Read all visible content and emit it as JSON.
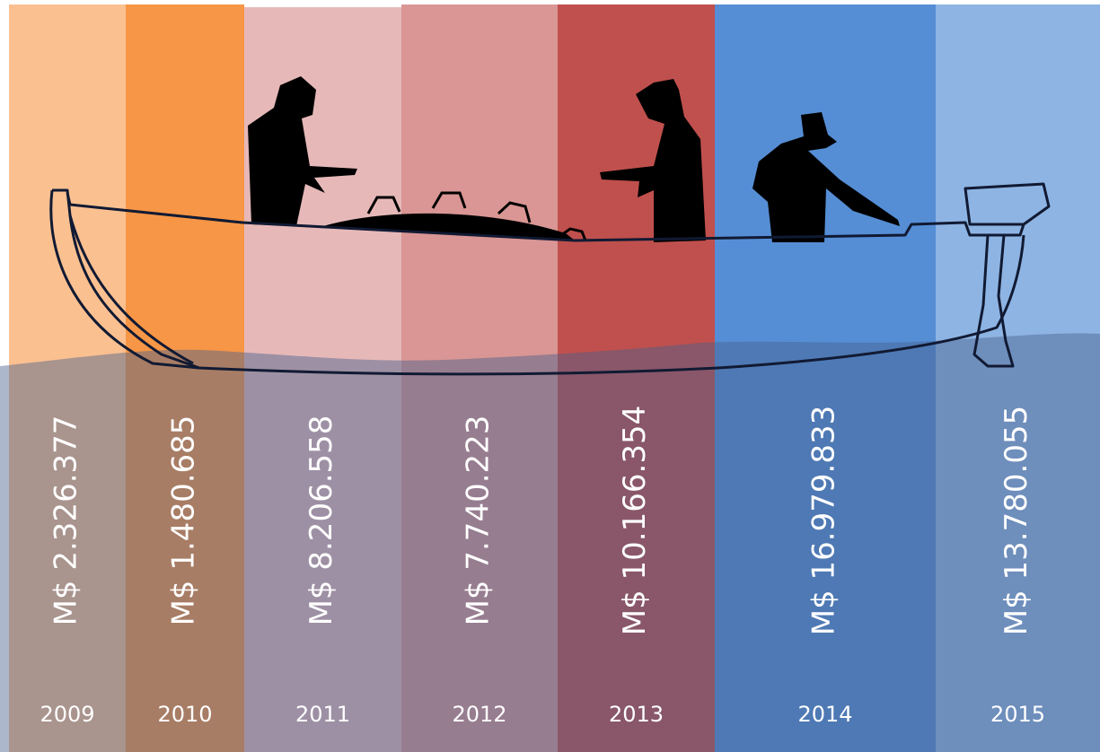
{
  "columns": [
    {
      "year": "2009",
      "amount": "M$ 2.326.377",
      "color": "#fac090"
    },
    {
      "year": "2010",
      "amount": "M$ 1.480.685",
      "color": "#f79646"
    },
    {
      "year": "2011",
      "amount": "M$ 8.206.558",
      "color": "#e6b9b8"
    },
    {
      "year": "2012",
      "amount": "M$ 7.740.223",
      "color": "#d99694"
    },
    {
      "year": "2013",
      "amount": "M$ 10.166.354",
      "color": "#c0504d"
    },
    {
      "year": "2014",
      "amount": "M$ 16.979.833",
      "color": "#558ed5"
    },
    {
      "year": "2015",
      "amount": "M$ 13.780.055",
      "color": "#8eb4e3"
    }
  ]
}
